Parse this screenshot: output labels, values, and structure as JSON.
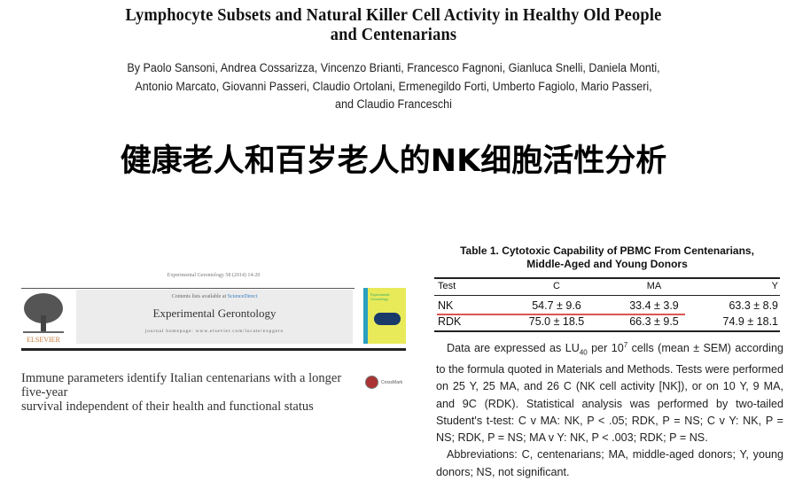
{
  "paper1": {
    "title_line1": "Lymphocyte Subsets and Natural Killer Cell Activity in Healthy Old People",
    "title_line2": "and Centenarians",
    "authors": [
      "By Paolo Sansoni, Andrea Cossarizza, Vincenzo Brianti, Francesco Fagnoni, Gianluca Snelli, Daniela Monti,",
      "Antonio Marcato, Giovanni Passeri, Claudio Ortolani, Ermenegildo Forti, Umberto Fagiolo, Mario Passeri,",
      "and Claudio Franceschi"
    ]
  },
  "chinese_heading": "健康老人和百岁老人的NK细胞活性分析",
  "paper2": {
    "journal_line": "Experimental Gerontology 58 (2014) 14-20",
    "contents_prefix": "Contents lists available at ",
    "contents_link": "ScienceDirect",
    "journal_name": "Experimental Gerontology",
    "homepage": "journal homepage: www.elsevier.com/locate/expgero",
    "publisher_logo": "ELSEVIER",
    "cover_title": "Experimental Gerontology",
    "article_title_line1": "Immune parameters identify Italian centenarians with a longer five-year",
    "article_title_line2": "survival independent of their health and functional status",
    "crossmark": "CrossMark"
  },
  "table": {
    "title_line1": "Table 1.  Cytotoxic Capability of PBMC From Centenarians,",
    "title_line2": "Middle-Aged and Young Donors",
    "headers": [
      "Test",
      "C",
      "MA",
      "Y"
    ],
    "rows": [
      [
        "NK",
        "54.7 ± 9.6",
        "33.4 ± 3.9",
        "63.3 ± 8.9"
      ],
      [
        "RDK",
        "75.0 ± 18.5",
        "66.3 ± 9.5",
        "74.9 ± 18.1"
      ]
    ],
    "highlight_color": "#d55555",
    "note1_a": "Data are expressed as LU",
    "note1_sub": "40",
    "note1_b": " per 10",
    "note1_sup": "7",
    "note1_c": " cells (mean ± SEM) according to the formula quoted in Materials and Methods. Tests were performed on 25 Y, 25 MA, and 26 C (NK cell activity [NK]), or on 10 Y, 9 MA, and 9C (RDK). Statistical analysis was performed by two-tailed Student's t-test: C v MA: NK, P < .05; RDK, P = NS; C v Y: NK, P = NS; RDK, P = NS; MA v Y: NK, P < .003; RDK; P = NS.",
    "note2": "Abbreviations: C, centenarians; MA, middle-aged donors; Y, young donors; NS, not significant."
  }
}
